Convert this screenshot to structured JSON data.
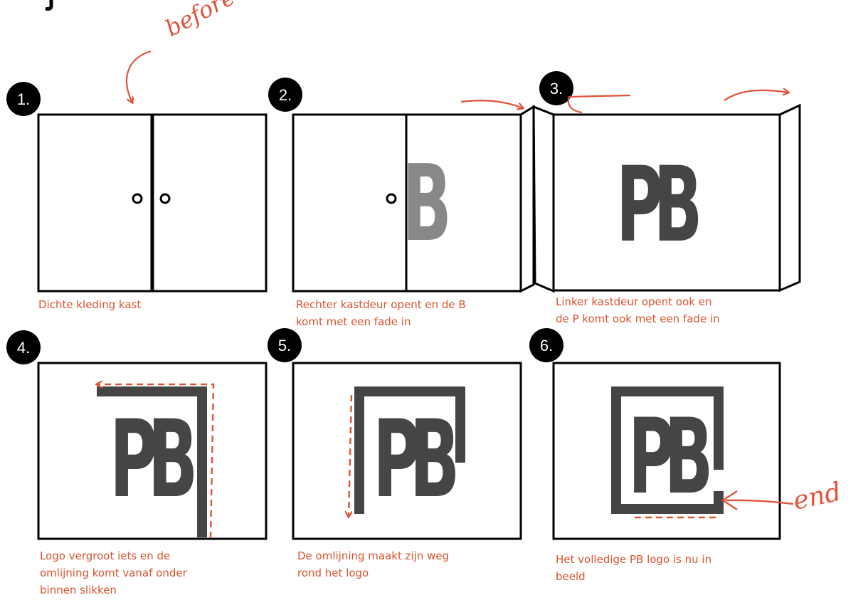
{
  "panels": [
    {
      "badge": "1.",
      "caption": "Dichte kleding kast"
    },
    {
      "badge": "2.",
      "caption": "Rechter kastdeur opent en de B\nkomt met een fade in"
    },
    {
      "badge": "3.",
      "caption": "Linker kastdeur opent ook en\nde P komt ook met een fade in"
    },
    {
      "badge": "4.",
      "caption": "Logo vergroot iets en de\nomlijning komt vanaf onder\nbinnen slikken"
    },
    {
      "badge": "5.",
      "caption": "De omlijning maakt zijn weg\nrond het logo"
    },
    {
      "badge": "6.",
      "caption": "Het volledige PB logo is nu in\nbeeld"
    }
  ],
  "logo": {
    "p": "P",
    "b": "B"
  },
  "annotations": {
    "before": "before",
    "end": "end"
  },
  "colors": {
    "caption": "#d9532e",
    "annotation": "#e0533a",
    "logo": "#454545",
    "logo_faded": "#888888",
    "outline": "#000000"
  }
}
